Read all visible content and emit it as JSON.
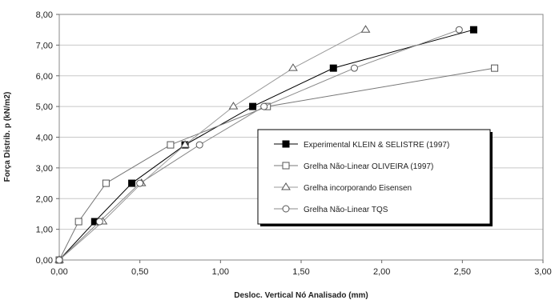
{
  "chart_data": {
    "type": "line",
    "xlabel": "Desloc. Vertical Nó Analisado (mm)",
    "ylabel": "Força Distrib. p (kN/m2)",
    "xlim": [
      0,
      3
    ],
    "ylim": [
      0,
      8
    ],
    "x_ticks": [
      "0,00",
      "0,50",
      "1,00",
      "1,50",
      "2,00",
      "2,50",
      "3,00"
    ],
    "y_ticks": [
      "0,00",
      "1,00",
      "2,00",
      "3,00",
      "4,00",
      "5,00",
      "6,00",
      "7,00",
      "8,00"
    ],
    "grid": "horizontal",
    "legend_position": "center-right",
    "series": [
      {
        "name": "Experimental KLEIN & SELISTRE (1997)",
        "marker": "filled-square",
        "color": "#000000",
        "points": [
          {
            "x": 0.0,
            "y": 0.0
          },
          {
            "x": 0.22,
            "y": 1.25
          },
          {
            "x": 0.45,
            "y": 2.5
          },
          {
            "x": 0.78,
            "y": 3.75
          },
          {
            "x": 1.2,
            "y": 5.0
          },
          {
            "x": 1.7,
            "y": 6.25
          },
          {
            "x": 2.57,
            "y": 7.5
          }
        ]
      },
      {
        "name": "Grelha Não-Linear OLIVEIRA (1997)",
        "marker": "open-square",
        "color": "#777777",
        "points": [
          {
            "x": 0.0,
            "y": 0.0
          },
          {
            "x": 0.12,
            "y": 1.25
          },
          {
            "x": 0.29,
            "y": 2.5
          },
          {
            "x": 0.69,
            "y": 3.75
          },
          {
            "x": 1.29,
            "y": 5.0
          },
          {
            "x": 2.7,
            "y": 6.25
          }
        ]
      },
      {
        "name": "Grelha incorporando Eisensen",
        "marker": "open-triangle",
        "color": "#999999",
        "points": [
          {
            "x": 0.0,
            "y": 0.0
          },
          {
            "x": 0.27,
            "y": 1.25
          },
          {
            "x": 0.51,
            "y": 2.5
          },
          {
            "x": 0.78,
            "y": 3.75
          },
          {
            "x": 1.08,
            "y": 5.0
          },
          {
            "x": 1.45,
            "y": 6.25
          },
          {
            "x": 1.9,
            "y": 7.5
          }
        ]
      },
      {
        "name": "Grelha Não-Linear TQS",
        "marker": "open-circle",
        "color": "#888888",
        "points": [
          {
            "x": 0.0,
            "y": 0.0
          },
          {
            "x": 0.25,
            "y": 1.25
          },
          {
            "x": 0.5,
            "y": 2.5
          },
          {
            "x": 0.87,
            "y": 3.75
          },
          {
            "x": 1.27,
            "y": 5.0
          },
          {
            "x": 1.83,
            "y": 6.25
          },
          {
            "x": 2.48,
            "y": 7.5
          }
        ]
      }
    ]
  }
}
